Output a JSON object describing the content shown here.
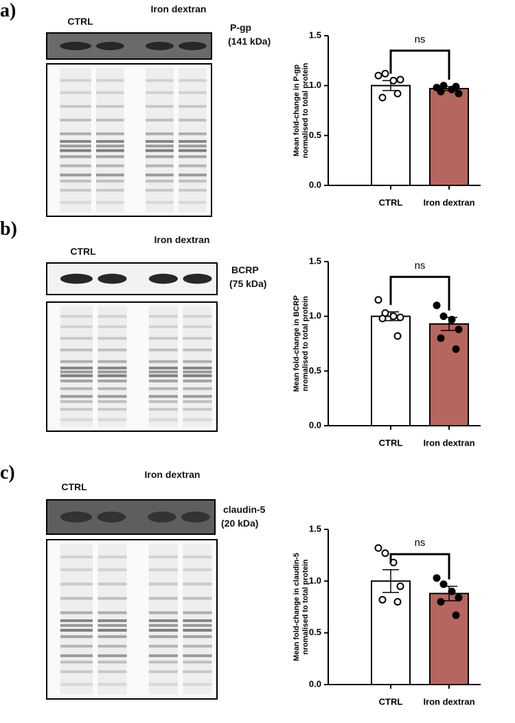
{
  "panels": [
    {
      "letter": "a)",
      "lanes": [
        "CTRL",
        "Iron dextran"
      ],
      "protein": [
        "P-gp",
        "(141 kDa)"
      ]
    },
    {
      "letter": "b)",
      "lanes": [
        "CTRL",
        "Iron dextran"
      ],
      "protein": [
        "BCRP",
        "(75 kDa)"
      ]
    },
    {
      "letter": "c)",
      "lanes": [
        "CTRL",
        "Iron dextran"
      ],
      "protein": [
        "claudin-5",
        "(20 kDa)"
      ]
    }
  ],
  "chart_data": [
    {
      "type": "bar",
      "annotation": "ns",
      "ylabel": [
        "Mean fold-change in P-gp",
        "normalised to  total protein"
      ],
      "categories": [
        "CTRL",
        "Iron dextran"
      ],
      "values": [
        1.0,
        0.97
      ],
      "errors": [
        0.05,
        0.02
      ],
      "colors": [
        "#ffffff",
        "#b5675f"
      ],
      "points": [
        [
          1.1,
          1.12,
          1.05,
          1.06,
          0.88,
          0.92
        ],
        [
          0.98,
          1.0,
          0.96,
          0.92,
          0.94,
          0.99
        ]
      ],
      "point_colors": [
        "#ffffff",
        "#000000"
      ],
      "ylim": [
        0,
        1.5
      ],
      "yticks": [
        {
          "value": 0,
          "label": "0.0"
        },
        {
          "value": 0.5,
          "label": "0.5"
        },
        {
          "value": 1,
          "label": "1.0"
        },
        {
          "value": 1.5,
          "label": "1.5"
        }
      ]
    },
    {
      "type": "bar",
      "annotation": "ns",
      "ylabel": [
        "Mean fold-change in BCRP",
        "nromalised to  total protein"
      ],
      "categories": [
        "CTRL",
        "Iron dextran"
      ],
      "values": [
        1.0,
        0.93
      ],
      "errors": [
        0.04,
        0.06
      ],
      "colors": [
        "#ffffff",
        "#b5675f"
      ],
      "points": [
        [
          1.15,
          1.03,
          1.0,
          0.99,
          0.98,
          0.82
        ],
        [
          1.1,
          1.0,
          0.97,
          0.88,
          0.8,
          0.7
        ]
      ],
      "point_colors": [
        "#ffffff",
        "#000000"
      ],
      "ylim": [
        0,
        1.5
      ],
      "yticks": [
        {
          "value": 0,
          "label": "0.0"
        },
        {
          "value": 0.5,
          "label": "0.5"
        },
        {
          "value": 1,
          "label": "1.0"
        },
        {
          "value": 1.5,
          "label": "1.5"
        }
      ]
    },
    {
      "type": "bar",
      "annotation": "ns",
      "ylabel": [
        "Mean fold-change in claudin-5",
        "nromalised to  total protein"
      ],
      "categories": [
        "CTRL",
        "Iron dextran"
      ],
      "values": [
        1.0,
        0.88
      ],
      "errors": [
        0.11,
        0.07
      ],
      "colors": [
        "#ffffff",
        "#b5675f"
      ],
      "points": [
        [
          1.32,
          1.27,
          1.18,
          0.95,
          0.82,
          0.8
        ],
        [
          1.03,
          0.97,
          0.9,
          0.84,
          0.8,
          0.67
        ]
      ],
      "point_colors": [
        "#ffffff",
        "#000000"
      ],
      "ylim": [
        0,
        1.5
      ],
      "yticks": [
        {
          "value": 0,
          "label": "0.0"
        },
        {
          "value": 0.5,
          "label": "0.5"
        },
        {
          "value": 1,
          "label": "1.0"
        },
        {
          "value": 1.5,
          "label": "1.5"
        }
      ]
    }
  ]
}
